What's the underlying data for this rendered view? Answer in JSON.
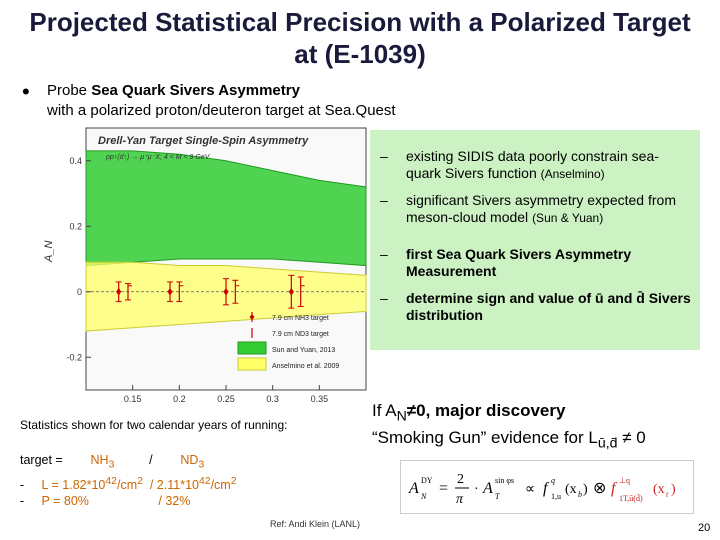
{
  "title": "Projected Statistical Precision with a Polarized Target at (E-1039)",
  "probe": {
    "prefix": "Probe ",
    "bold": "Sea Quark Sivers Asymmetry",
    "sub": "with a polarized proton/deuteron target at Sea.Quest"
  },
  "chart_data": {
    "type": "line",
    "title": "Drell-Yan Target Single-Spin Asymmetry",
    "subtitle": "pp↑(d↑) → μ⁺μ⁻X; 4 < M < 9 GeV",
    "xlabel": "",
    "ylabel": "A_N",
    "xlim": [
      0.1,
      0.4
    ],
    "ylim": [
      -0.3,
      0.5
    ],
    "x_ticks": [
      "0.15",
      "0.2",
      "0.25",
      "0.3",
      "0.35"
    ],
    "y_ticks": [
      "-0.2",
      "0",
      "0.2",
      "0.4"
    ],
    "legend": [
      {
        "label": "7.9 cm NH3 target",
        "color": "#cc0000"
      },
      {
        "label": "7.9 cm ND3 target",
        "color": "#cc0000"
      },
      {
        "label": "Sun and Yuan, 2013",
        "color": "#33cc33"
      },
      {
        "label": "Anselmino et al. 2009",
        "color": "#ffff66"
      }
    ],
    "series": [
      {
        "name": "Sun and Yuan, 2013",
        "x": [
          0.1,
          0.15,
          0.2,
          0.25,
          0.3,
          0.35,
          0.4
        ],
        "upper": [
          0.43,
          0.43,
          0.42,
          0.4,
          0.37,
          0.34,
          0.32
        ],
        "lower": [
          0.08,
          0.09,
          0.1,
          0.1,
          0.1,
          0.09,
          0.08
        ]
      },
      {
        "name": "Anselmino et al. 2009",
        "x": [
          0.1,
          0.15,
          0.2,
          0.25,
          0.3,
          0.35,
          0.4
        ],
        "upper": [
          0.09,
          0.09,
          0.08,
          0.08,
          0.07,
          0.06,
          0.05
        ],
        "lower": [
          -0.12,
          -0.11,
          -0.1,
          -0.09,
          -0.08,
          -0.07,
          -0.06
        ]
      },
      {
        "name": "7.9 cm NH3 target",
        "x": [
          0.135,
          0.19,
          0.25,
          0.32
        ],
        "y": [
          0,
          0,
          0,
          0
        ],
        "err": [
          0.03,
          0.03,
          0.04,
          0.05
        ]
      },
      {
        "name": "7.9 cm ND3 target",
        "x": [
          0.145,
          0.2,
          0.26,
          0.33
        ],
        "y": [
          0,
          0,
          0,
          0
        ],
        "err": [
          0.025,
          0.03,
          0.035,
          0.045
        ]
      }
    ]
  },
  "green_box": {
    "items": [
      {
        "dash": "–",
        "text": "existing SIDIS data poorly constrain sea-quark Sivers function ",
        "small": "(Anselmino)",
        "bold": false
      },
      {
        "dash": "–",
        "text": "significant Sivers asymmetry expected from meson-cloud model ",
        "small": "(Sun & Yuan)",
        "bold": false
      },
      {
        "dash": "–",
        "text": "first Sea Quark Sivers Asymmetry Measurement",
        "small": "",
        "bold": true
      },
      {
        "dash": "–",
        "text": "determine sign and value of ū and d̄ Sivers distribution",
        "small": "",
        "bold": true
      }
    ]
  },
  "stats_caption": "Statistics shown for two calendar years of running:",
  "discovery": {
    "line1_prefix": "If A",
    "line1_sub": "N",
    "line1_rest": "≠0, major discovery",
    "line2": "“Smoking Gun” evidence for L",
    "line2_sub": "ū,d̄",
    "line2_rest": " ≠ 0"
  },
  "target": {
    "line1_a": "target = ",
    "line1_b": "NH",
    "line1_b_sub": "3",
    "line1_c": "/",
    "line1_d": "ND",
    "line1_d_sub": "3",
    "line2_a": "-",
    "line2_b": "L = 1.82*10",
    "line2_b_sup": "42",
    "line2_c": "/cm",
    "line2_c_sup": "2",
    "line2_d": "/  2.11*10",
    "line2_d_sup": "42",
    "line2_e": "/cm",
    "line2_e_sup": "2",
    "line3_a": "-",
    "line3_b": "P = 80%",
    "line3_c": "/  32%"
  },
  "formula": "A_N^DY = (2/π) · A_T^{sin φ_s} ∝ f_{1,u}^q(x_b) ⊗ f_{1T,ū(d̄)}^{⊥q}(x_t)",
  "ref": "Ref: Andi Klein (LANL)",
  "page_number": "20"
}
